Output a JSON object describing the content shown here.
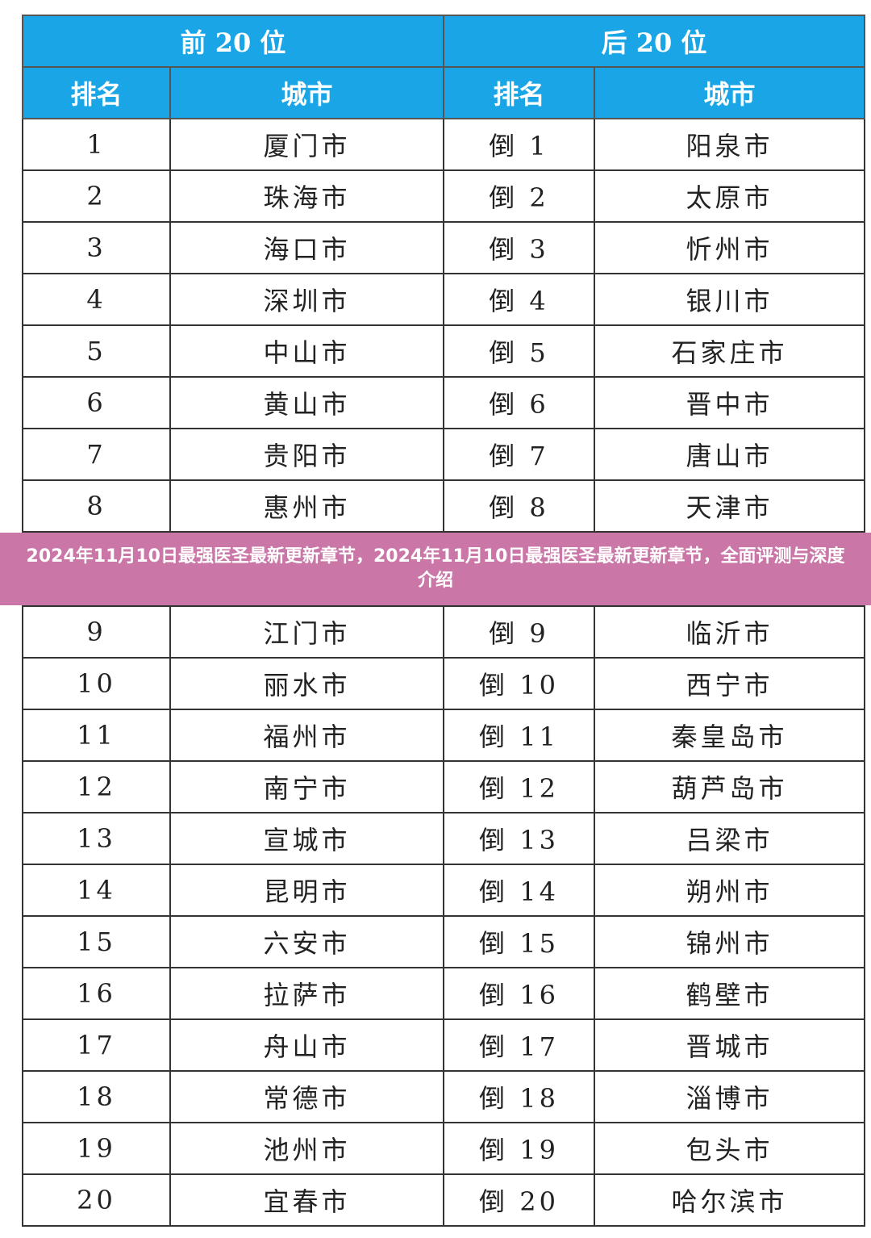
{
  "groups": [
    "前 20 位",
    "后 20 位"
  ],
  "columns": [
    "排名",
    "城市",
    "排名",
    "城市"
  ],
  "rows": [
    [
      "1",
      "厦门市",
      "倒 1",
      "阳泉市"
    ],
    [
      "2",
      "珠海市",
      "倒 2",
      "太原市"
    ],
    [
      "3",
      "海口市",
      "倒 3",
      "忻州市"
    ],
    [
      "4",
      "深圳市",
      "倒 4",
      "银川市"
    ],
    [
      "5",
      "中山市",
      "倒 5",
      "石家庄市"
    ],
    [
      "6",
      "黄山市",
      "倒 6",
      "晋中市"
    ],
    [
      "7",
      "贵阳市",
      "倒 7",
      "唐山市"
    ],
    [
      "8",
      "惠州市",
      "倒 8",
      "天津市"
    ],
    [
      "9",
      "江门市",
      "倒 9",
      "临沂市"
    ],
    [
      "10",
      "丽水市",
      "倒 10",
      "西宁市"
    ],
    [
      "11",
      "福州市",
      "倒 11",
      "秦皇岛市"
    ],
    [
      "12",
      "南宁市",
      "倒 12",
      "葫芦岛市"
    ],
    [
      "13",
      "宣城市",
      "倒 13",
      "吕梁市"
    ],
    [
      "14",
      "昆明市",
      "倒 14",
      "朔州市"
    ],
    [
      "15",
      "六安市",
      "倒 15",
      "锦州市"
    ],
    [
      "16",
      "拉萨市",
      "倒 16",
      "鹤壁市"
    ],
    [
      "17",
      "舟山市",
      "倒 17",
      "晋城市"
    ],
    [
      "18",
      "常德市",
      "倒 18",
      "淄博市"
    ],
    [
      "19",
      "池州市",
      "倒 19",
      "包头市"
    ],
    [
      "20",
      "宜春市",
      "倒 20",
      "哈尔滨市"
    ]
  ],
  "banner": "2024年11月10日最强医圣最新更新章节，2024年11月10日最强医圣最新更新章节，全面评测与深度介绍",
  "colors": {
    "header": "#1aa6e6",
    "banner": "#c4689e"
  }
}
